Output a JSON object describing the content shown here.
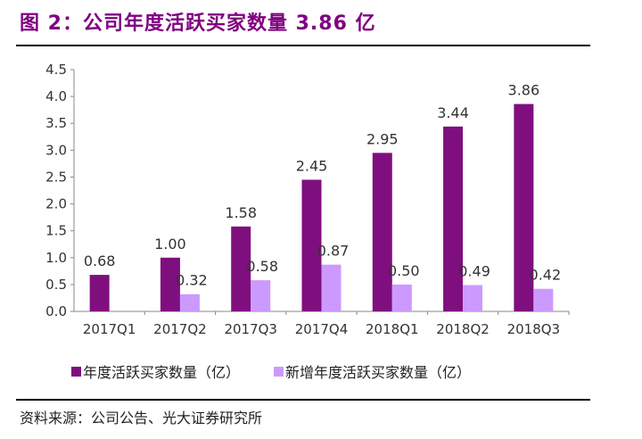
{
  "title": "图 2：公司年度活跃买家数量 3.86 亿",
  "source": "资料来源：公司公告、光大证券研究所",
  "chart_data": {
    "type": "bar",
    "title": "图 2：公司年度活跃买家数量 3.86 亿",
    "categories": [
      "2017Q1",
      "2017Q2",
      "2017Q3",
      "2017Q4",
      "2018Q1",
      "2018Q2",
      "2018Q3"
    ],
    "series": [
      {
        "name": "年度活跃买家数量（亿）",
        "color": "#7F0F7F",
        "values": [
          0.68,
          1.0,
          1.58,
          2.45,
          2.95,
          3.44,
          3.86
        ],
        "labels": [
          "0.68",
          "1.00",
          "1.58",
          "2.45",
          "2.95",
          "3.44",
          "3.86"
        ]
      },
      {
        "name": "新增年度活跃买家数量（亿）",
        "color": "#CC99FF",
        "values": [
          null,
          0.32,
          0.58,
          0.87,
          0.5,
          0.49,
          0.42
        ],
        "labels": [
          "",
          "0.32",
          "0.58",
          "0.87",
          "0.50",
          "0.49",
          "0.42"
        ]
      }
    ],
    "ylim": [
      0,
      4.5
    ],
    "yticks": [
      "0.0",
      "0.5",
      "1.0",
      "1.5",
      "2.0",
      "2.5",
      "3.0",
      "3.5",
      "4.0",
      "4.5"
    ],
    "xlabel": "",
    "ylabel": "",
    "legend": "bottom",
    "grid": false
  }
}
